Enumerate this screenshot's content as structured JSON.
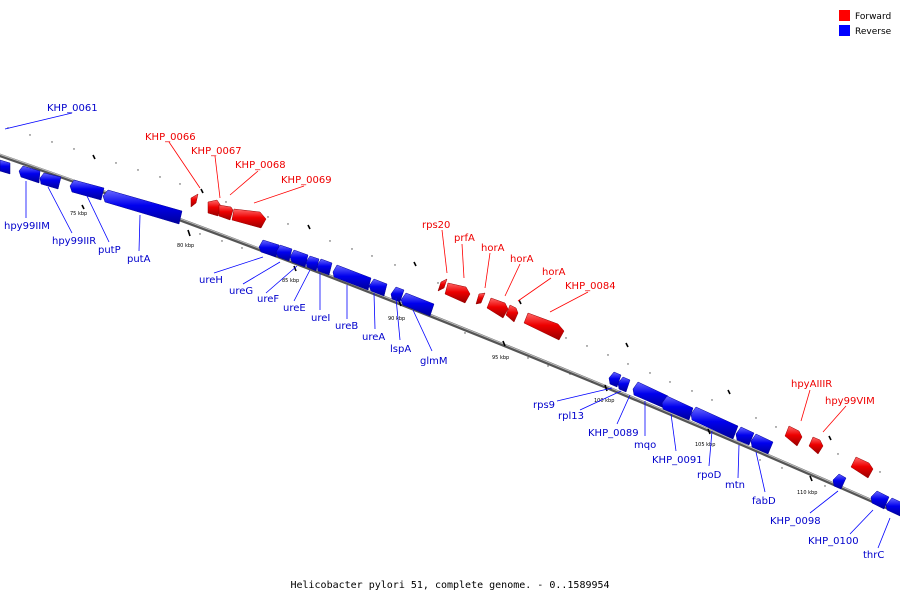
{
  "legend": {
    "forward": {
      "label": "Forward",
      "color": "#ff0000"
    },
    "reverse": {
      "label": "Reverse",
      "color": "#0000ff"
    }
  },
  "caption": "Helicobacter pylori 51, complete genome. - 0..1589954",
  "ticks": [
    "75 kbp",
    "80 kbp",
    "85 kbp",
    "90 kbp",
    "95 kbp",
    "100 kbp",
    "105 kbp",
    "110 kbp"
  ],
  "forward_genes": [
    "KHP_0066",
    "KHP_0067",
    "KHP_0068",
    "KHP_0069",
    "rps20",
    "prfA",
    "horA",
    "horA",
    "horA",
    "KHP_0084",
    "hpyAIIIR",
    "hpy99VIM"
  ],
  "reverse_genes": [
    "KHP_0061",
    "hpy99IIM",
    "hpy99IIR",
    "putP",
    "putA",
    "ureH",
    "ureG",
    "ureF",
    "ureE",
    "ureI",
    "ureB",
    "ureA",
    "lspA",
    "glmM",
    "rps9",
    "rpl13",
    "KHP_0089",
    "mqo",
    "KHP_0091",
    "rpoD",
    "mtn",
    "fabD",
    "KHP_0098",
    "KHP_0100",
    "thrC"
  ]
}
